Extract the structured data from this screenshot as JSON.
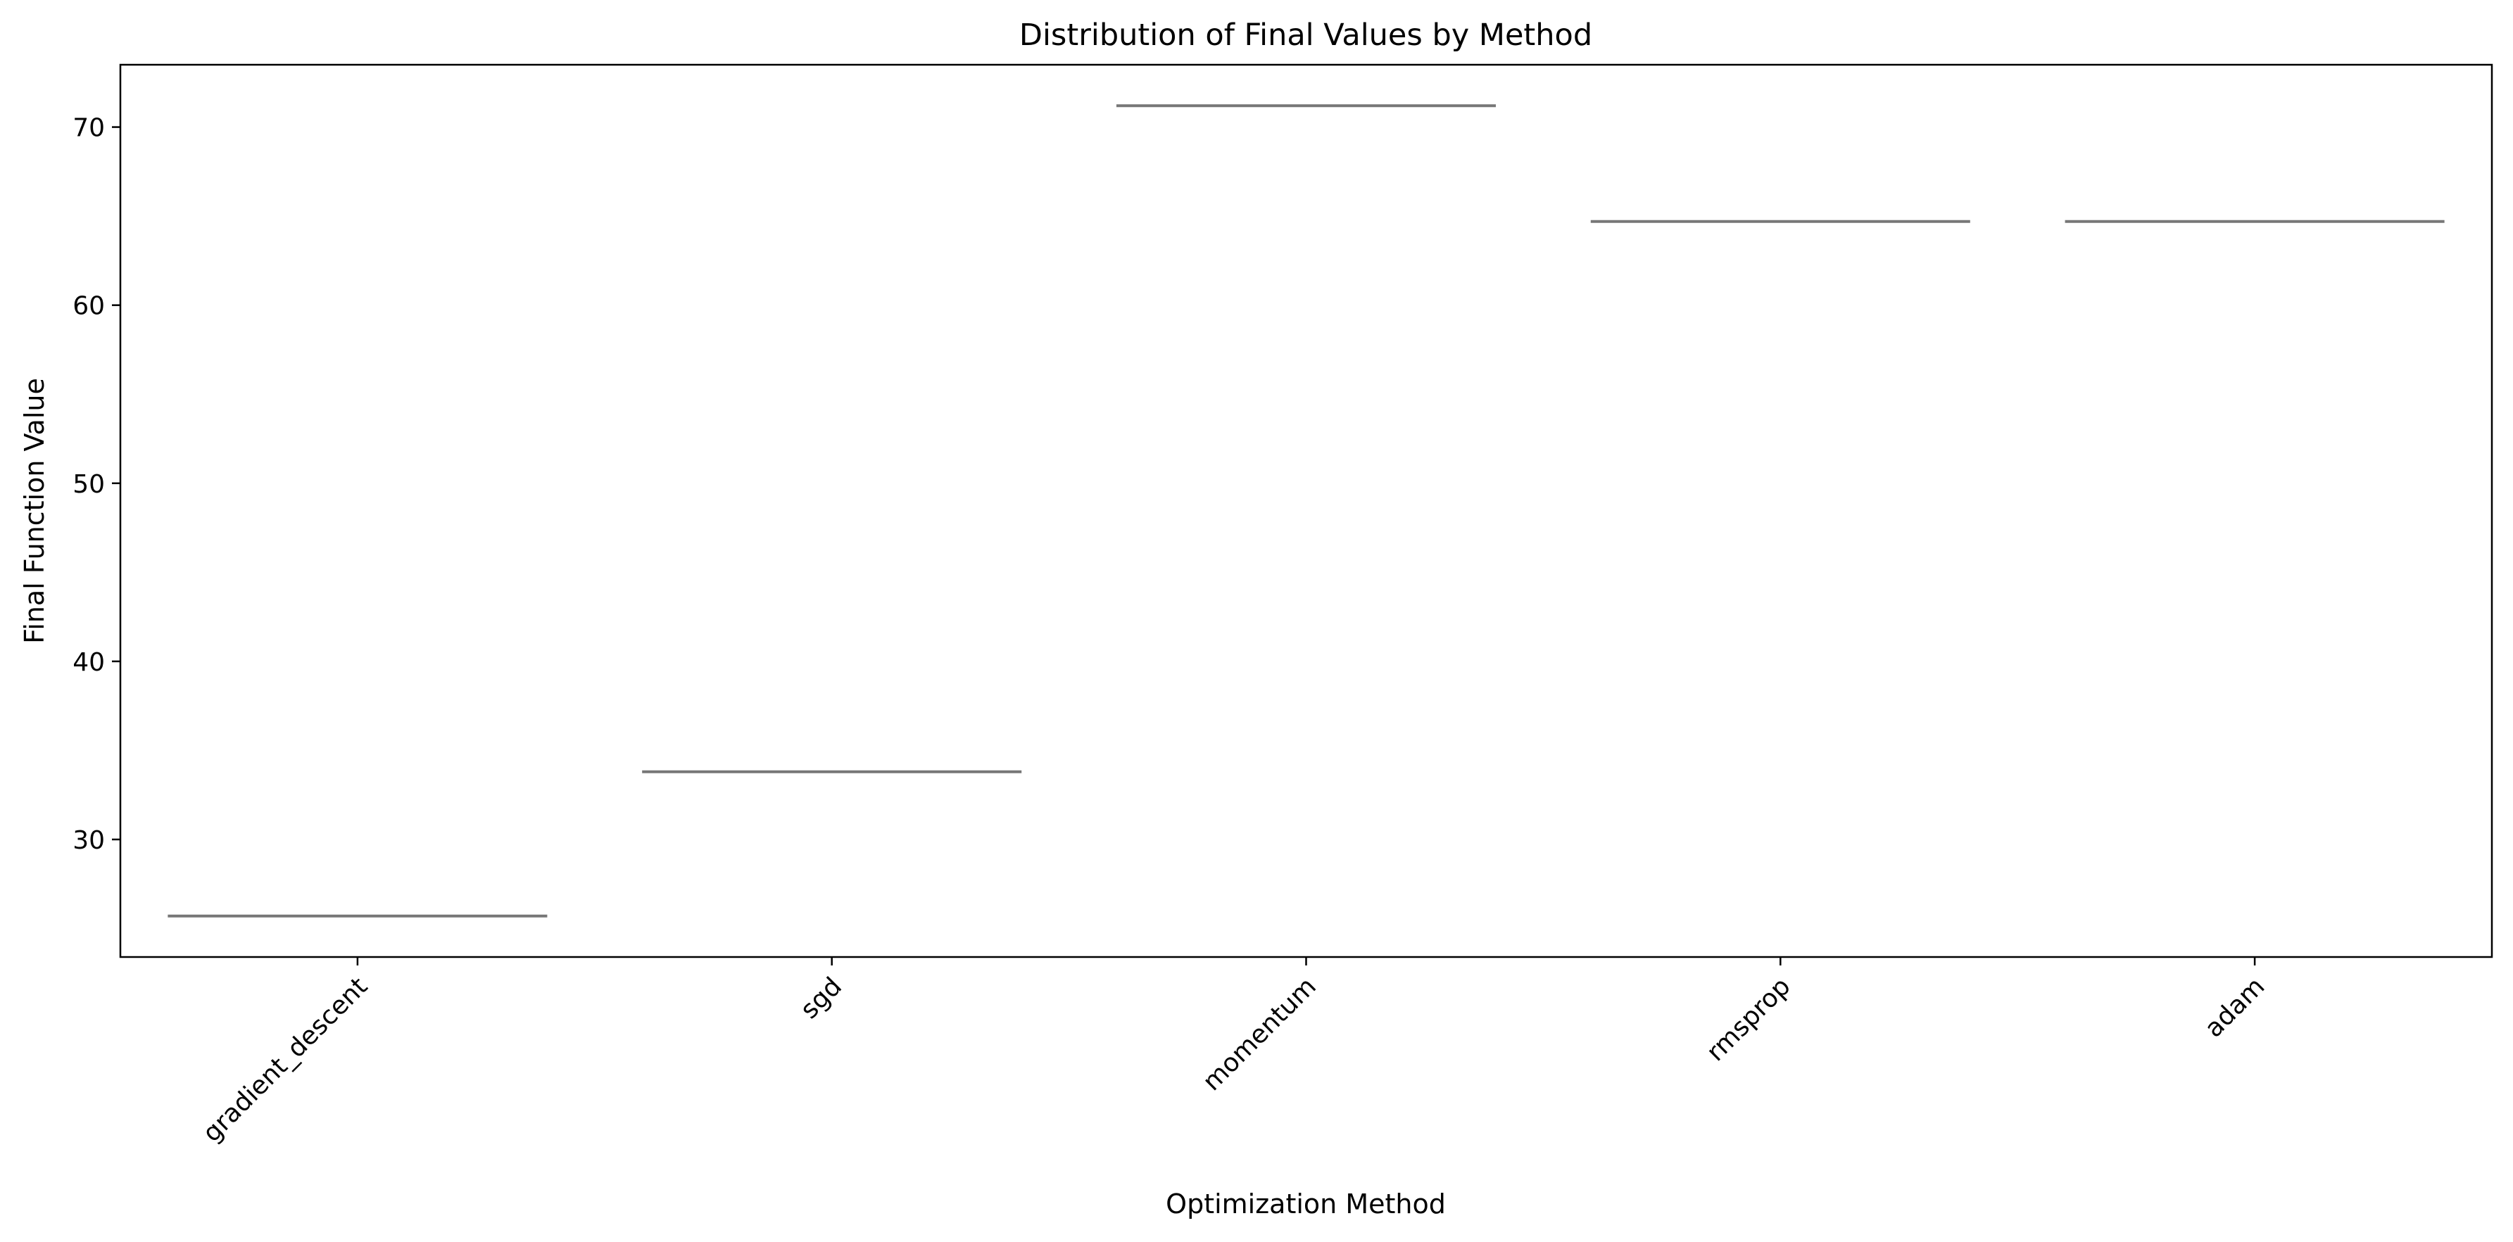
{
  "chart_data": {
    "type": "box",
    "title": "Distribution of Final Values by Method",
    "xlabel": "Optimization Method",
    "ylabel": "Final Function Value",
    "categories": [
      "gradient_descent",
      "sgd",
      "momentum",
      "rmsprop",
      "adam"
    ],
    "values": [
      25.7,
      33.8,
      71.2,
      64.7,
      64.7
    ],
    "ylim": [
      23.4,
      73.5
    ],
    "yticks": [
      30,
      40,
      50,
      60,
      70
    ],
    "grid": false,
    "legend": "none",
    "line_color": "#777777"
  }
}
